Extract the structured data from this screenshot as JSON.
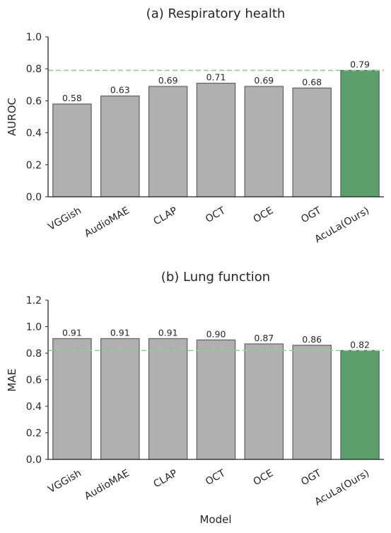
{
  "colors": {
    "bar": "#b0b0b0",
    "bar_edge": "#606060",
    "highlight": "#5c9e6c",
    "reference_line": "#8fcc9a"
  },
  "chart_data": [
    {
      "type": "bar",
      "title": "(a) Respiratory health",
      "xlabel": "",
      "ylabel": "AUROC",
      "categories": [
        "VGGish",
        "AudioMAE",
        "CLAP",
        "OCT",
        "OCE",
        "OGT",
        "AcuLa(Ours)"
      ],
      "values": [
        0.58,
        0.63,
        0.69,
        0.71,
        0.69,
        0.68,
        0.79
      ],
      "data_labels": [
        "0.58",
        "0.63",
        "0.69",
        "0.71",
        "0.69",
        "0.68",
        "0.79"
      ],
      "highlight_category": "AcuLa(Ours)",
      "reference_line": 0.79,
      "ylim": [
        0,
        1.0
      ],
      "yticks": [
        0.0,
        0.2,
        0.4,
        0.6,
        0.8,
        1.0
      ],
      "ytick_labels": [
        "0.0",
        "0.2",
        "0.4",
        "0.6",
        "0.8",
        "1.0"
      ],
      "grid": false
    },
    {
      "type": "bar",
      "title": "(b) Lung function",
      "xlabel": "Model",
      "ylabel": "MAE",
      "categories": [
        "VGGish",
        "AudioMAE",
        "CLAP",
        "OCT",
        "OCE",
        "OGT",
        "AcuLa(Ours)"
      ],
      "values": [
        0.91,
        0.91,
        0.91,
        0.9,
        0.87,
        0.86,
        0.82
      ],
      "data_labels": [
        "0.91",
        "0.91",
        "0.91",
        "0.90",
        "0.87",
        "0.86",
        "0.82"
      ],
      "highlight_category": "AcuLa(Ours)",
      "reference_line": 0.82,
      "ylim": [
        0,
        1.2
      ],
      "yticks": [
        0.0,
        0.2,
        0.4,
        0.6,
        0.8,
        1.0,
        1.2
      ],
      "ytick_labels": [
        "0.0",
        "0.2",
        "0.4",
        "0.6",
        "0.8",
        "1.0",
        "1.2"
      ],
      "grid": false
    }
  ]
}
